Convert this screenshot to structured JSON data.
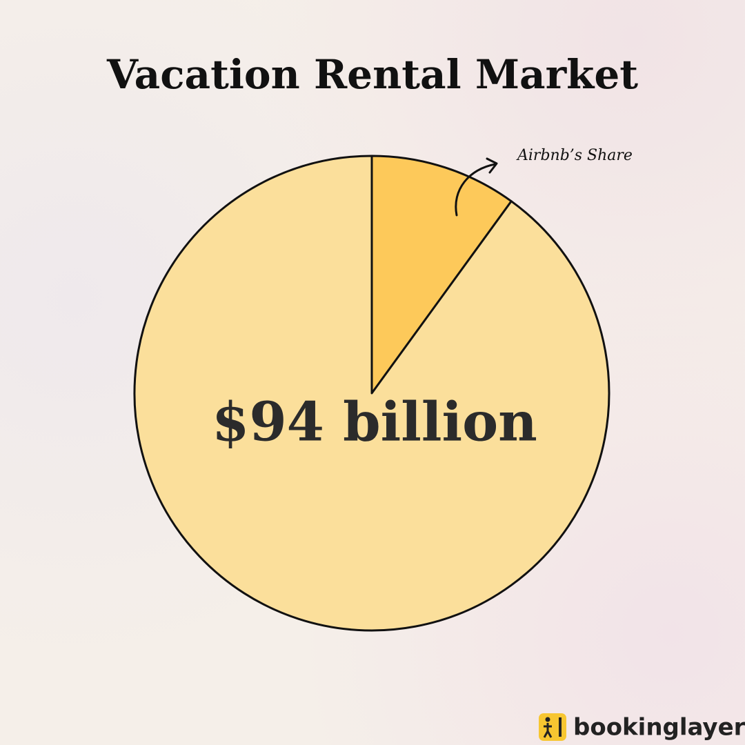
{
  "chart_data": {
    "type": "pie",
    "title": "Vacation Rental Market",
    "annotation": "$94 billion",
    "categories": [
      "Airbnb’s Share",
      null
    ],
    "values": [
      10,
      90
    ],
    "colors": [
      "#fdc95a",
      "#fbdf9b"
    ]
  },
  "footer": {
    "brand": "bookinglayer"
  }
}
